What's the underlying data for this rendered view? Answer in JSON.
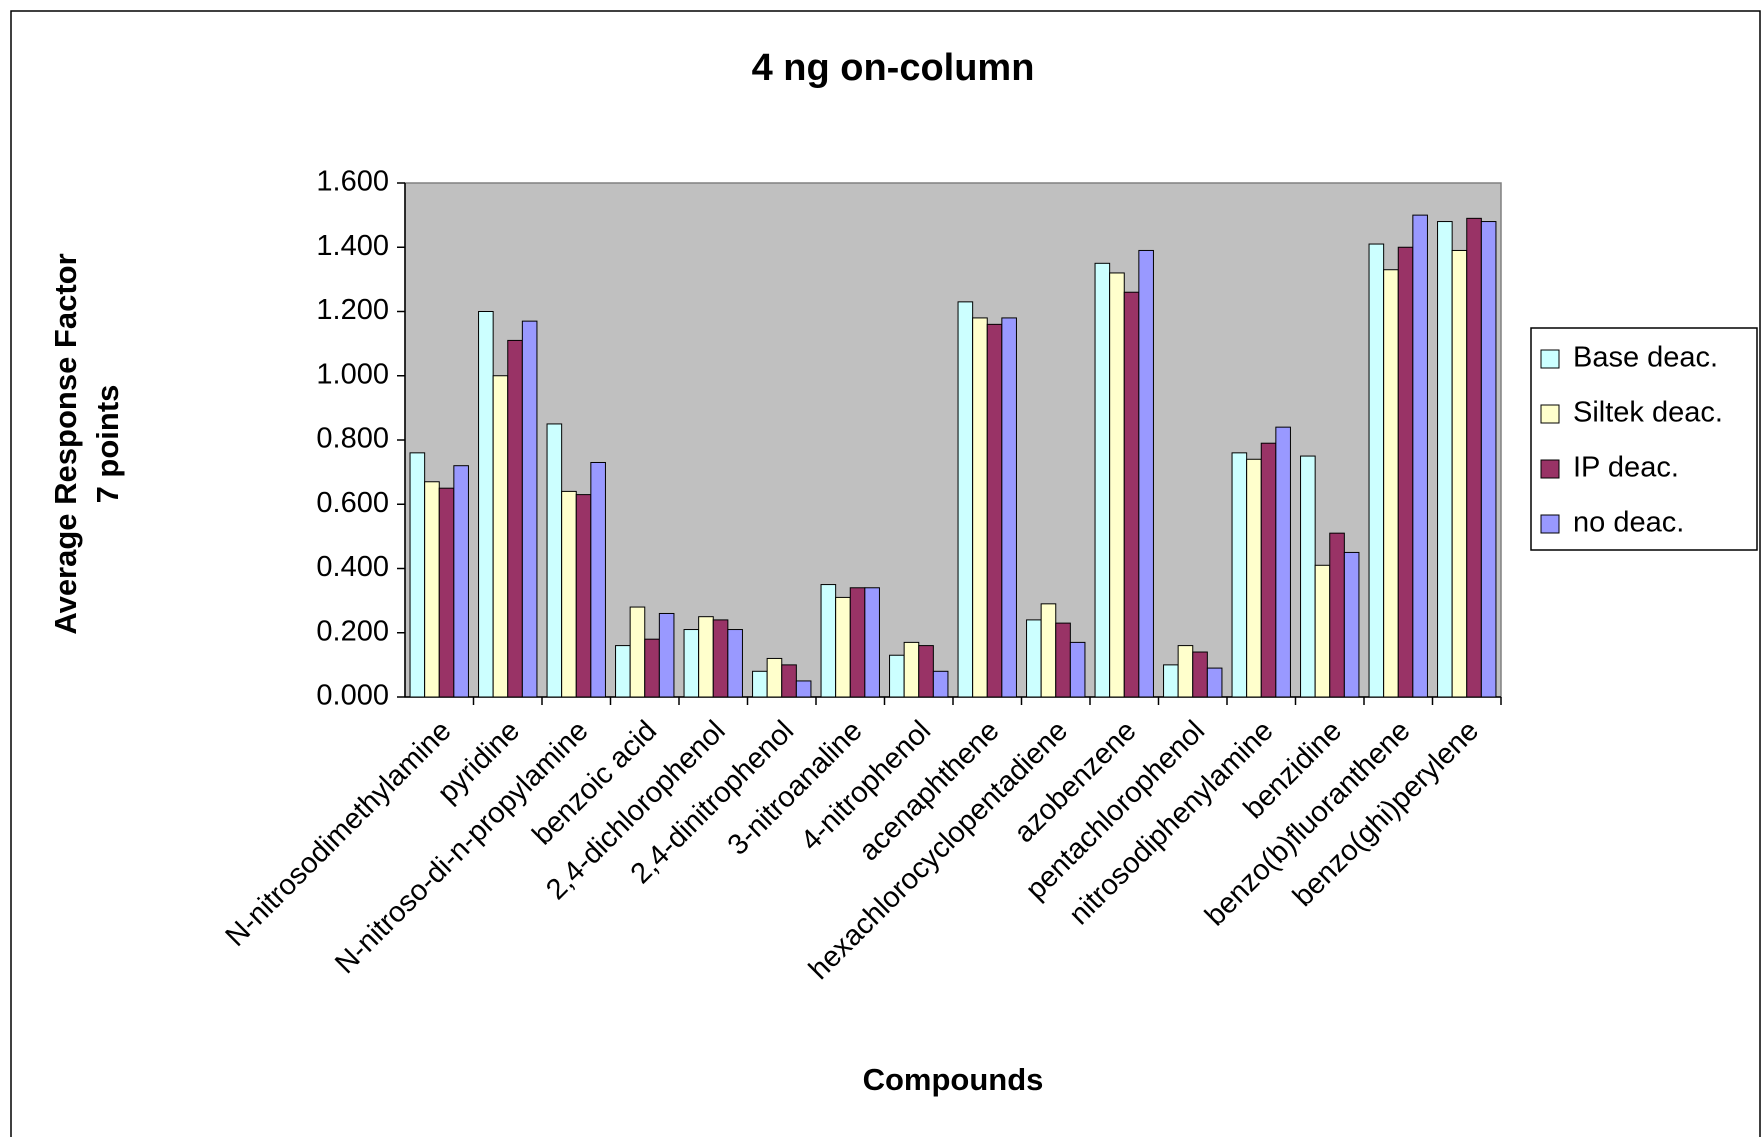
{
  "chart_data": {
    "type": "bar",
    "title": "4 ng on-column",
    "x_label": "Compounds",
    "y_label": [
      "Average Response Factor",
      "7 points"
    ],
    "categories": [
      "N-nitrosodimethylamine",
      "pyridine",
      "N-nitroso-di-n-propylamine",
      "benzoic acid",
      "2,4-dichlorophenol",
      "2,4-dinitrophenol",
      "3-nitroanaline",
      "4-nitrophenol",
      "acenaphthene",
      "hexachlorocyclopentadiene",
      "azobenzene",
      "pentachlorophenol",
      "nitrosodiphenylamine",
      "benzidine",
      "benzo(b)fluoranthene",
      "benzo(ghi)perylene"
    ],
    "series": [
      {
        "name": "Base deac.",
        "color": "#ccffff",
        "values": [
          0.76,
          1.2,
          0.85,
          0.16,
          0.21,
          0.08,
          0.35,
          0.13,
          1.23,
          0.24,
          1.35,
          0.1,
          0.76,
          0.75,
          1.41,
          1.48
        ]
      },
      {
        "name": "Siltek deac.",
        "color": "#ffffcc",
        "values": [
          0.67,
          1.0,
          0.64,
          0.28,
          0.25,
          0.12,
          0.31,
          0.17,
          1.18,
          0.29,
          1.32,
          0.16,
          0.74,
          0.41,
          1.33,
          1.39
        ]
      },
      {
        "name": "IP deac.",
        "color": "#993366",
        "values": [
          0.65,
          1.11,
          0.63,
          0.18,
          0.24,
          0.1,
          0.34,
          0.16,
          1.16,
          0.23,
          1.26,
          0.14,
          0.79,
          0.51,
          1.4,
          1.49
        ]
      },
      {
        "name": "no deac.",
        "color": "#9999ff",
        "values": [
          0.72,
          1.17,
          0.73,
          0.26,
          0.21,
          0.05,
          0.34,
          0.08,
          1.18,
          0.17,
          1.39,
          0.09,
          0.84,
          0.45,
          1.5,
          1.48
        ]
      }
    ],
    "ylim": [
      0,
      1.6
    ],
    "yticks": [
      {
        "value": 0,
        "label": "0.000"
      },
      {
        "value": 0.2,
        "label": "0.200"
      },
      {
        "value": 0.4,
        "label": "0.400"
      },
      {
        "value": 0.6,
        "label": "0.600"
      },
      {
        "value": 0.8,
        "label": "0.800"
      },
      {
        "value": 1.0,
        "label": "1.000"
      },
      {
        "value": 1.2,
        "label": "1.200"
      },
      {
        "value": 1.4,
        "label": "1.400"
      },
      {
        "value": 1.6,
        "label": "1.600"
      }
    ],
    "plot_background": "#c0c0c0",
    "legend": "right"
  }
}
